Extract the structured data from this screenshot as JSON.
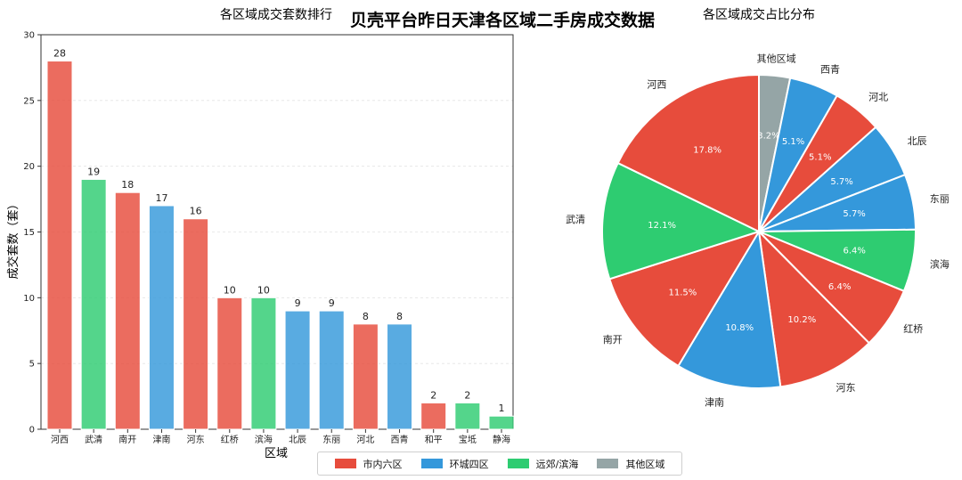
{
  "suptitle": "贝壳平台昨日天津各区域二手房成交数据",
  "colors": {
    "市内六区": "#e74c3c",
    "环城四区": "#3498db",
    "远郊/滨海": "#2ecc71",
    "其他区域": "#95a5a6"
  },
  "legend": [
    {
      "label": "市内六区",
      "color": "#e74c3c"
    },
    {
      "label": "环城四区",
      "color": "#3498db"
    },
    {
      "label": "远郊/滨海",
      "color": "#2ecc71"
    },
    {
      "label": "其他区域",
      "color": "#95a5a6"
    }
  ],
  "chart_data": [
    {
      "type": "bar",
      "title": "各区域成交套数排行",
      "xlabel": "区域",
      "ylabel": "成交套数（套）",
      "ylim": [
        0,
        30
      ],
      "yticks": [
        0,
        5,
        10,
        15,
        20,
        25,
        30
      ],
      "grid": "y",
      "categories": [
        "河西",
        "武清",
        "南开",
        "津南",
        "河东",
        "红桥",
        "滨海",
        "北辰",
        "东丽",
        "河北",
        "西青",
        "和平",
        "宝坻",
        "静海"
      ],
      "values": [
        28,
        19,
        18,
        17,
        16,
        10,
        10,
        9,
        9,
        8,
        8,
        2,
        2,
        1
      ],
      "groups": [
        "市内六区",
        "远郊/滨海",
        "市内六区",
        "环城四区",
        "市内六区",
        "市内六区",
        "远郊/滨海",
        "环城四区",
        "环城四区",
        "市内六区",
        "环城四区",
        "市内六区",
        "远郊/滨海",
        "远郊/滨海"
      ]
    },
    {
      "type": "pie",
      "title": "各区域成交占比分布",
      "labels": [
        "其他区域",
        "西青",
        "河北",
        "北辰",
        "东丽",
        "滨海",
        "红桥",
        "河东",
        "津南",
        "南开",
        "武清",
        "河西"
      ],
      "values": [
        3.2,
        5.1,
        5.1,
        5.7,
        5.7,
        6.4,
        6.4,
        10.2,
        10.8,
        11.5,
        12.1,
        17.8
      ],
      "pct_labels": [
        "3.2%",
        "5.1%",
        "5.1%",
        "5.7%",
        "5.7%",
        "6.4%",
        "6.4%",
        "10.2%",
        "10.8%",
        "11.5%",
        "12.1%",
        "17.8%"
      ],
      "groups": [
        "其他区域",
        "环城四区",
        "市内六区",
        "环城四区",
        "环城四区",
        "远郊/滨海",
        "市内六区",
        "市内六区",
        "环城四区",
        "市内六区",
        "远郊/滨海",
        "市内六区"
      ],
      "start": "top",
      "direction": "clockwise"
    }
  ]
}
